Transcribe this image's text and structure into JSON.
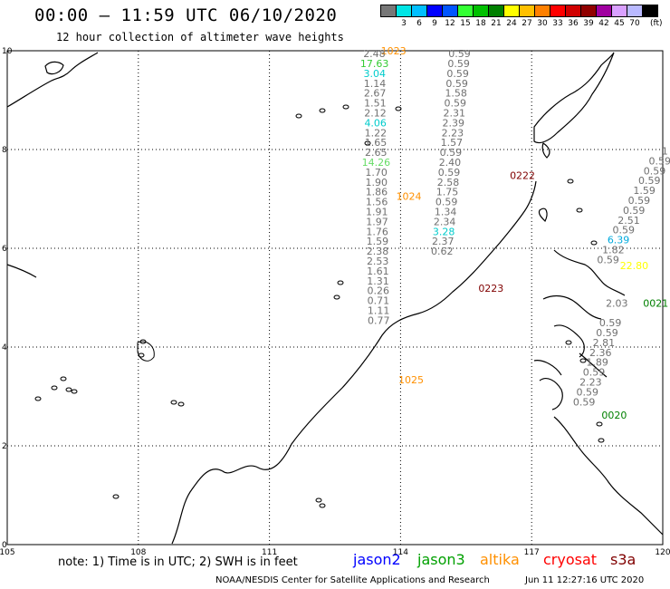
{
  "header": {
    "title": "00:00 – 11:59 UTC 06/10/2020",
    "subtitle": "12 hour collection of altimeter wave heights"
  },
  "legend": {
    "unit": "(ft)",
    "swatches": [
      {
        "color": "#777777",
        "label": ""
      },
      {
        "color": "#00e5e5",
        "label": "3"
      },
      {
        "color": "#00bfff",
        "label": "6"
      },
      {
        "color": "#0000ff",
        "label": "9"
      },
      {
        "color": "#0055ff",
        "label": "12"
      },
      {
        "color": "#33ff33",
        "label": "15"
      },
      {
        "color": "#00c000",
        "label": "18"
      },
      {
        "color": "#008000",
        "label": "21"
      },
      {
        "color": "#ffff00",
        "label": "24"
      },
      {
        "color": "#ffc000",
        "label": "27"
      },
      {
        "color": "#ff8000",
        "label": "30"
      },
      {
        "color": "#ff0000",
        "label": "33"
      },
      {
        "color": "#d00000",
        "label": "36"
      },
      {
        "color": "#900000",
        "label": "39"
      },
      {
        "color": "#a000a0",
        "label": "42"
      },
      {
        "color": "#d9a0ff",
        "label": "45"
      },
      {
        "color": "#b9b9ff",
        "label": "70"
      },
      {
        "color": "#000000",
        "label": ""
      }
    ]
  },
  "map": {
    "lon_ticks": [
      "105",
      "108",
      "111",
      "114",
      "117",
      "120"
    ],
    "lat_ticks": [
      "0",
      "2",
      "4",
      "6",
      "8",
      "10"
    ],
    "lon_range": [
      105,
      120
    ],
    "lat_range": [
      0,
      10
    ],
    "time_labels": [
      {
        "text": "1023",
        "color": "#ff9000",
        "lon": 113.55,
        "lat": 9.93
      },
      {
        "text": "0222",
        "color": "#800000",
        "lon": 116.5,
        "lat": 7.4
      },
      {
        "text": "1024",
        "color": "#ff9000",
        "lon": 113.9,
        "lat": 6.98
      },
      {
        "text": "0223",
        "color": "#800000",
        "lon": 115.78,
        "lat": 5.12
      },
      {
        "text": "0021",
        "color": "#008000",
        "lon": 119.55,
        "lat": 4.82
      },
      {
        "text": "1025",
        "color": "#ff9000",
        "lon": 113.95,
        "lat": 3.27
      },
      {
        "text": "0020",
        "color": "#008000",
        "lon": 118.6,
        "lat": 2.55
      },
      {
        "text": "22.80",
        "color": "#ffff00",
        "lon": 119.02,
        "lat": 5.58
      }
    ],
    "tracks": [
      {
        "lon_top": 113.4,
        "lon_bottom": 113.5,
        "lat_top": 9.87,
        "values": [
          "2.48",
          "17.63",
          "3.04",
          "1.14",
          "2.67",
          "1.51",
          "2.12",
          "4.06",
          "1.22",
          "1.65",
          "2.65",
          "14.26",
          "1.70",
          "1.90",
          "1.86",
          "1.56",
          "1.91",
          "1.97",
          "1.76",
          "1.59",
          "2.38",
          "2.53",
          "1.61",
          "1.31",
          "0.26",
          "0.71",
          "1.11",
          "0.77"
        ],
        "colors": {
          "1": "#33cc33",
          "2": "#00cccc",
          "7": "#00cccc",
          "11": "#66dd66"
        }
      },
      {
        "lon_top": 115.35,
        "lon_bottom": 114.95,
        "lat_top": 9.87,
        "values": [
          "0.59",
          "0.59",
          "0.59",
          "0.59",
          "1.58",
          "0.59",
          "2.31",
          "2.39",
          "2.23",
          "1.57",
          "0.59",
          "2.40",
          "0.59",
          "2.58",
          "1.75",
          "0.59",
          "1.34",
          "2.34",
          "3.28",
          "2.37",
          "0.62"
        ],
        "colors": {
          "18": "#00cccc"
        }
      },
      {
        "lon_top": 120.05,
        "lon_bottom": 118.75,
        "lat_top": 7.9,
        "values": [
          "1",
          "0.59",
          "0.59",
          "0.59",
          "1.59",
          "0.59",
          "0.59",
          "2.51",
          "0.59",
          "6.39",
          "1.82",
          "0.59"
        ],
        "colors": {
          "9": "#00aadd"
        }
      },
      {
        "lon_top": 118.95,
        "lon_bottom": 118.2,
        "lat_top": 4.82,
        "values": [
          "2.03",
          "",
          "0.59",
          "0.59",
          "2.81",
          "2.36",
          "1.89",
          "0.59",
          "2.23",
          "0.59",
          "0.59"
        ],
        "colors": {}
      }
    ]
  },
  "footer": {
    "note": "note: 1) Time is in UTC; 2) SWH is in feet",
    "satellites": [
      {
        "name": "jason2",
        "color": "#0000ff"
      },
      {
        "name": "jason3",
        "color": "#00a000"
      },
      {
        "name": "altika",
        "color": "#ff9000"
      },
      {
        "name": "cryosat",
        "color": "#ff0000"
      },
      {
        "name": "s3a",
        "color": "#800000"
      }
    ],
    "credit": "NOAA/NESDIS Center for Satellite Applications and Research",
    "timestamp": "Jun 11 12:27:16 UTC 2020"
  }
}
